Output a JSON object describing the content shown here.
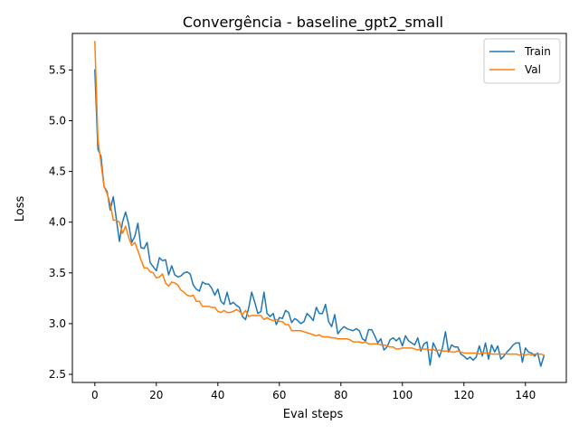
{
  "chart_data": {
    "type": "line",
    "title": "Convergência - baseline_gpt2_small",
    "xlabel": "Eval steps",
    "ylabel": "Loss",
    "xlim": [
      -7.3,
      153.3
    ],
    "ylim": [
      2.42,
      5.86
    ],
    "xticks": [
      0,
      20,
      40,
      60,
      80,
      100,
      120,
      140
    ],
    "yticks": [
      2.5,
      3.0,
      3.5,
      4.0,
      4.5,
      5.0,
      5.5
    ],
    "xtick_labels": [
      "0",
      "20",
      "40",
      "60",
      "80",
      "100",
      "120",
      "140"
    ],
    "ytick_labels": [
      "2.5",
      "3.0",
      "3.5",
      "4.0",
      "4.5",
      "5.0",
      "5.5"
    ],
    "grid": false,
    "legend_position": "top-right",
    "series": [
      {
        "name": "Train",
        "color": "#1f77b4",
        "x": [
          0,
          1,
          2,
          3,
          4,
          5,
          6,
          7,
          8,
          9,
          10,
          11,
          12,
          13,
          14,
          15,
          16,
          17,
          18,
          19,
          20,
          21,
          22,
          23,
          24,
          25,
          26,
          27,
          28,
          29,
          30,
          31,
          32,
          33,
          34,
          35,
          36,
          37,
          38,
          39,
          40,
          41,
          42,
          43,
          44,
          45,
          46,
          47,
          48,
          49,
          50,
          51,
          52,
          53,
          54,
          55,
          56,
          57,
          58,
          59,
          60,
          61,
          62,
          63,
          64,
          65,
          66,
          67,
          68,
          69,
          70,
          71,
          72,
          73,
          74,
          75,
          76,
          77,
          78,
          79,
          80,
          81,
          82,
          83,
          84,
          85,
          86,
          87,
          88,
          89,
          90,
          91,
          92,
          93,
          94,
          95,
          96,
          97,
          98,
          99,
          100,
          101,
          102,
          103,
          104,
          105,
          106,
          107,
          108,
          109,
          110,
          111,
          112,
          113,
          114,
          115,
          116,
          117,
          118,
          119,
          120,
          121,
          122,
          123,
          124,
          125,
          126,
          127,
          128,
          129,
          130,
          131,
          132,
          133,
          134,
          135,
          136,
          137,
          138,
          139,
          140,
          141,
          142,
          143,
          144,
          145,
          146
        ],
        "values": [
          5.5,
          4.72,
          4.65,
          4.35,
          4.3,
          4.12,
          4.25,
          4.03,
          3.81,
          4.0,
          4.1,
          3.98,
          3.8,
          3.86,
          3.99,
          3.75,
          3.74,
          3.8,
          3.6,
          3.56,
          3.52,
          3.65,
          3.62,
          3.63,
          3.48,
          3.57,
          3.48,
          3.46,
          3.47,
          3.5,
          3.51,
          3.49,
          3.38,
          3.34,
          3.32,
          3.41,
          3.39,
          3.39,
          3.35,
          3.28,
          3.34,
          3.22,
          3.19,
          3.31,
          3.19,
          3.21,
          3.18,
          3.16,
          3.07,
          3.04,
          3.15,
          3.31,
          3.21,
          3.1,
          3.12,
          3.31,
          3.1,
          3.07,
          3.1,
          2.99,
          3.06,
          3.05,
          3.13,
          3.11,
          3.01,
          3.05,
          3.03,
          3.0,
          3.02,
          3.1,
          3.07,
          3.03,
          3.16,
          3.1,
          3.1,
          3.19,
          3.02,
          2.97,
          3.09,
          2.9,
          2.94,
          2.97,
          2.95,
          2.94,
          2.93,
          2.95,
          2.93,
          2.85,
          2.83,
          2.94,
          2.94,
          2.88,
          2.81,
          2.85,
          2.74,
          2.77,
          2.84,
          2.86,
          2.83,
          2.86,
          2.78,
          2.88,
          2.83,
          2.81,
          2.79,
          2.86,
          2.73,
          2.8,
          2.82,
          2.59,
          2.81,
          2.75,
          2.67,
          2.76,
          2.92,
          2.72,
          2.79,
          2.77,
          2.77,
          2.7,
          2.68,
          2.65,
          2.67,
          2.64,
          2.67,
          2.78,
          2.68,
          2.81,
          2.65,
          2.79,
          2.72,
          2.78,
          2.65,
          2.68,
          2.72,
          2.75,
          2.79,
          2.81,
          2.81,
          2.62,
          2.76,
          2.72,
          2.71,
          2.68,
          2.71,
          2.58,
          2.68
        ]
      },
      {
        "name": "Val",
        "color": "#ff7f0e",
        "x": [
          0,
          1,
          2,
          3,
          4,
          5,
          6,
          7,
          8,
          9,
          10,
          11,
          12,
          13,
          14,
          15,
          16,
          17,
          18,
          19,
          20,
          21,
          22,
          23,
          24,
          25,
          26,
          27,
          28,
          29,
          30,
          31,
          32,
          33,
          34,
          35,
          36,
          37,
          38,
          39,
          40,
          41,
          42,
          43,
          44,
          45,
          46,
          47,
          48,
          49,
          50,
          51,
          52,
          53,
          54,
          55,
          56,
          57,
          58,
          59,
          60,
          61,
          62,
          63,
          64,
          65,
          66,
          67,
          68,
          69,
          70,
          71,
          72,
          73,
          74,
          75,
          76,
          77,
          78,
          79,
          80,
          81,
          82,
          83,
          84,
          85,
          86,
          87,
          88,
          89,
          90,
          91,
          92,
          93,
          94,
          95,
          96,
          97,
          98,
          99,
          100,
          101,
          102,
          103,
          104,
          105,
          106,
          107,
          108,
          109,
          110,
          111,
          112,
          113,
          114,
          115,
          116,
          117,
          118,
          119,
          120,
          121,
          122,
          123,
          124,
          125,
          126,
          127,
          128,
          129,
          130,
          131,
          132,
          133,
          134,
          135,
          136,
          137,
          138,
          139,
          140,
          141,
          142,
          143,
          144,
          145,
          146
        ],
        "values": [
          5.78,
          4.82,
          4.58,
          4.35,
          4.28,
          4.18,
          4.02,
          4.02,
          4.0,
          3.89,
          3.96,
          3.85,
          3.77,
          3.8,
          3.72,
          3.63,
          3.55,
          3.55,
          3.51,
          3.5,
          3.45,
          3.46,
          3.49,
          3.4,
          3.37,
          3.41,
          3.4,
          3.38,
          3.33,
          3.31,
          3.28,
          3.27,
          3.28,
          3.22,
          3.22,
          3.17,
          3.17,
          3.17,
          3.16,
          3.16,
          3.12,
          3.11,
          3.13,
          3.11,
          3.11,
          3.12,
          3.14,
          3.12,
          3.09,
          3.13,
          3.07,
          3.08,
          3.08,
          3.08,
          3.08,
          3.04,
          3.06,
          3.04,
          3.03,
          3.04,
          3.02,
          3.02,
          2.99,
          2.99,
          2.93,
          2.93,
          2.93,
          2.93,
          2.92,
          2.91,
          2.9,
          2.89,
          2.88,
          2.89,
          2.87,
          2.87,
          2.87,
          2.86,
          2.86,
          2.85,
          2.85,
          2.85,
          2.85,
          2.84,
          2.82,
          2.82,
          2.82,
          2.81,
          2.82,
          2.8,
          2.8,
          2.8,
          2.8,
          2.79,
          2.79,
          2.78,
          2.77,
          2.77,
          2.75,
          2.75,
          2.76,
          2.76,
          2.76,
          2.76,
          2.75,
          2.74,
          2.75,
          2.75,
          2.75,
          2.74,
          2.75,
          2.73,
          2.74,
          2.73,
          2.73,
          2.73,
          2.72,
          2.72,
          2.73,
          2.72,
          2.71,
          2.71,
          2.71,
          2.71,
          2.71,
          2.7,
          2.71,
          2.71,
          2.71,
          2.7,
          2.7,
          2.7,
          2.7,
          2.7,
          2.7,
          2.7,
          2.7,
          2.7,
          2.69,
          2.7,
          2.69,
          2.7,
          2.69,
          2.7,
          2.7,
          2.7,
          2.69
        ]
      }
    ]
  }
}
